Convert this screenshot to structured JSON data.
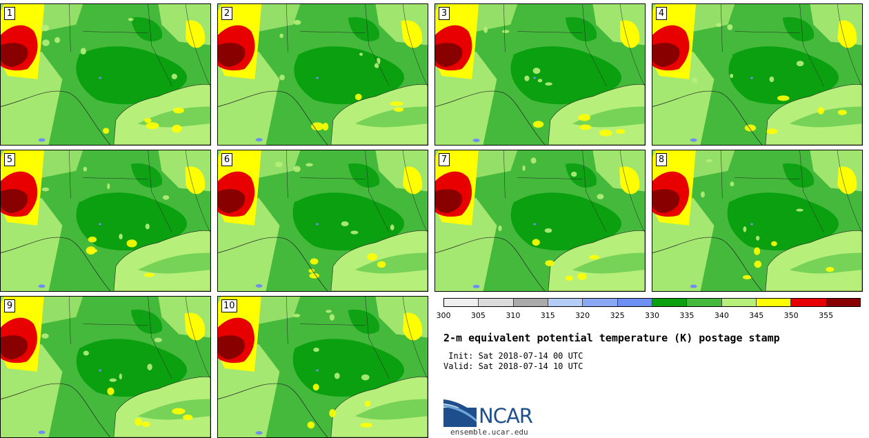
{
  "title": "2-m equivalent potential temperature (K) postage stamp",
  "init_label": " Init: Sat 2018-07-14 00 UTC",
  "valid_label": "Valid: Sat 2018-07-14 10 UTC",
  "logo_text": "NCAR",
  "logo_url": "ensemble.ucar.edu",
  "members": [
    "1",
    "2",
    "3",
    "4",
    "5",
    "6",
    "7",
    "8",
    "9",
    "10"
  ],
  "colorbar": {
    "ticks": [
      "300",
      "305",
      "310",
      "315",
      "320",
      "325",
      "330",
      "335",
      "340",
      "345",
      "350",
      "355"
    ],
    "colors": [
      "#f0f0f0",
      "#dcdcdc",
      "#aaaaaa",
      "#b4ccf8",
      "#8aa8f4",
      "#6f8ef2",
      "#0aa010",
      "#44b93c",
      "#b6f07a",
      "#ffff00",
      "#e80000",
      "#880000"
    ]
  },
  "colors": {
    "ocean": "#b6f07a",
    "land_dark": "#0aa010",
    "land_mid": "#44b93c",
    "land_light": "#b6f07a",
    "hot_yellow": "#ffff00",
    "hot_red": "#e80000",
    "hot_darkred": "#880000",
    "water": "#6f8ef2"
  }
}
